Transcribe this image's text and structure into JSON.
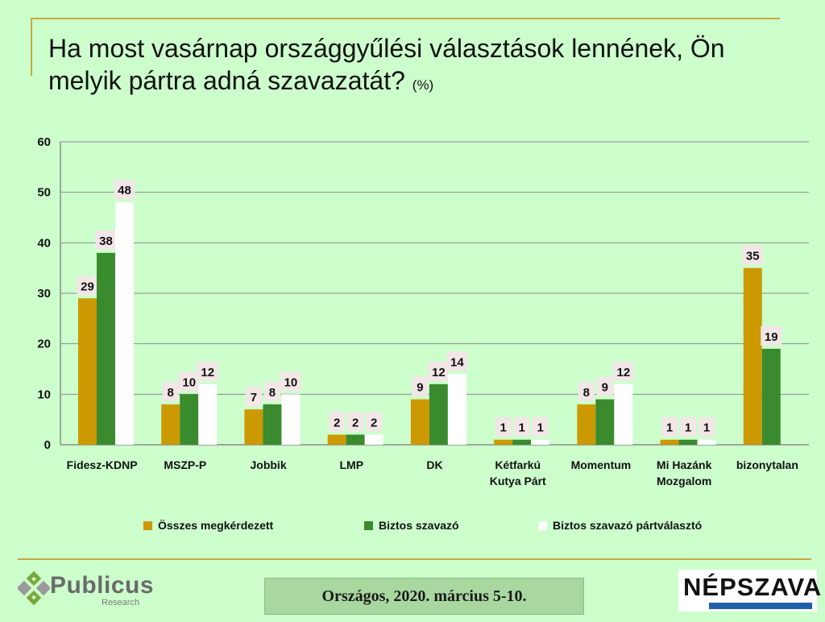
{
  "header": {
    "title_line1": "Ha most vasárnap országgyűlési választások lennének, Ön",
    "title_line2": "melyik pártra adná szavazatát?",
    "unit": "(%)"
  },
  "chart_data": {
    "type": "bar",
    "title": "Ha most vasárnap országgyűlési választások lennének, Ön melyik pártra adná szavazatát? (%)",
    "xlabel": "",
    "ylabel": "",
    "ylim": [
      0,
      60
    ],
    "yticks": [
      0,
      10,
      20,
      30,
      40,
      50,
      60
    ],
    "grid": true,
    "legend_position": "bottom",
    "categories": [
      [
        "Fidesz-KDNP"
      ],
      [
        "MSZP-P"
      ],
      [
        "Jobbik"
      ],
      [
        "LMP"
      ],
      [
        "DK"
      ],
      [
        "Kétfarkú",
        "Kutya Párt"
      ],
      [
        "Momentum"
      ],
      [
        "Mi Hazánk",
        "Mozgalom"
      ],
      [
        "bizonytalan"
      ]
    ],
    "series": [
      {
        "name": "Összes megkérdezett",
        "color": "#cc9900",
        "values": [
          29,
          8,
          7,
          2,
          9,
          1,
          8,
          1,
          35
        ]
      },
      {
        "name": "Biztos szavazó",
        "color": "#3a8a2e",
        "values": [
          38,
          10,
          8,
          2,
          12,
          1,
          9,
          1,
          19
        ]
      },
      {
        "name": "Biztos szavazó pártválasztó",
        "color": "#ffffff",
        "values": [
          48,
          12,
          10,
          2,
          14,
          1,
          12,
          1,
          null
        ]
      }
    ]
  },
  "footer": {
    "logo_left": "Publicus",
    "logo_left_sub": "Research",
    "caption": "Országos, 2020. március 5-10.",
    "logo_right": "NÉPSZAVA"
  }
}
